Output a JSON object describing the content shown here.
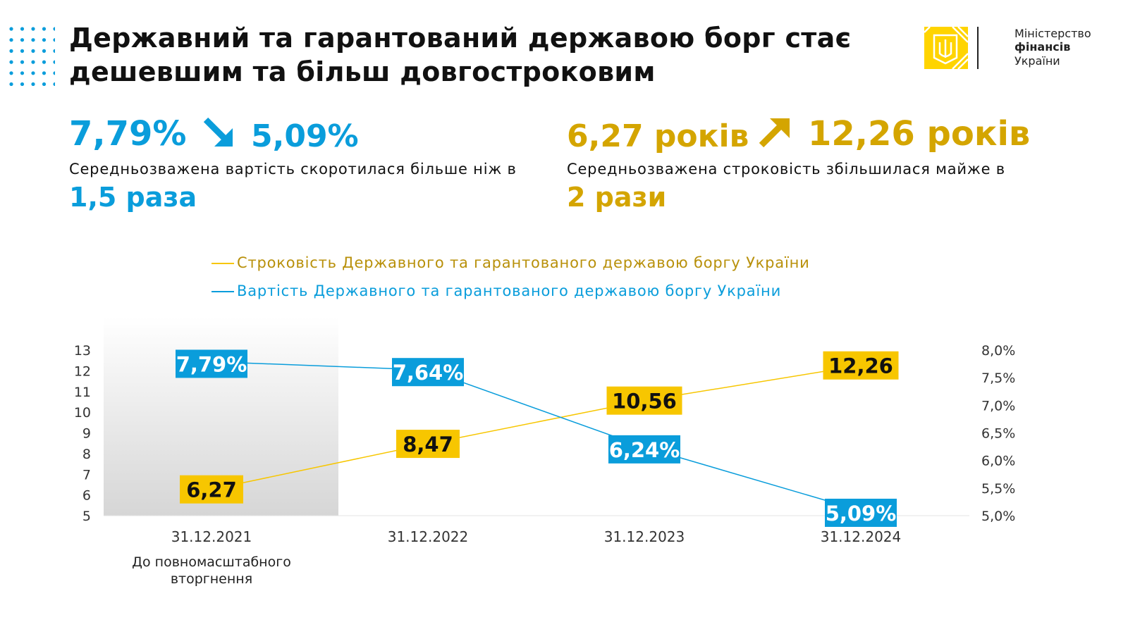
{
  "header": {
    "title_line1": "Державний та гарантований державою борг стає",
    "title_line2": "дешевшим та більш довгостроковим",
    "logo": {
      "line1": "Міністерство",
      "line2": "фінансів",
      "line3": "України"
    }
  },
  "kpi_cost": {
    "from": "7,79%",
    "to": "5,09%",
    "arrow": "arrow-down-right-icon",
    "description": "Середньозважена вартість скоротилася більше ніж в",
    "factor": "1,5 раза"
  },
  "kpi_term": {
    "from": "6,27 років",
    "to": "12,26 років",
    "arrow": "arrow-up-right-icon",
    "description": "Середньозважена строковість збільшилася майже в",
    "factor": "2 рази"
  },
  "colors": {
    "blue": "#0a9ddb",
    "yellow": "#f7c600",
    "gold_text": "#d4a500"
  },
  "chart_data": {
    "type": "line",
    "categories": [
      "31.12.2021",
      "31.12.2022",
      "31.12.2023",
      "31.12.2024"
    ],
    "category_note": "До повномасштабного вторгнення",
    "legend_position": "top",
    "grid": false,
    "series": [
      {
        "name": "Строковість Державного та гарантованого державою боргу України",
        "axis": "left",
        "color": "#f7c600",
        "values": [
          6.27,
          8.47,
          10.56,
          12.26
        ],
        "labels": [
          "6,27",
          "8,47",
          "10,56",
          "12,26"
        ]
      },
      {
        "name": "Вартість Державного та гарантованого державою боргу України",
        "axis": "right",
        "color": "#0a9ddb",
        "values": [
          7.79,
          7.64,
          6.24,
          5.09
        ],
        "labels": [
          "7,79%",
          "7,64%",
          "6,24%",
          "5,09%"
        ]
      }
    ],
    "left_axis": {
      "ylim": [
        5,
        13
      ],
      "ticks": [
        "5",
        "6",
        "7",
        "8",
        "9",
        "10",
        "11",
        "12",
        "13"
      ]
    },
    "right_axis": {
      "ylim": [
        5.0,
        8.0
      ],
      "ticks": [
        "5,0%",
        "5,5%",
        "6,0%",
        "6,5%",
        "7,0%",
        "7,5%",
        "8,0%"
      ]
    }
  }
}
